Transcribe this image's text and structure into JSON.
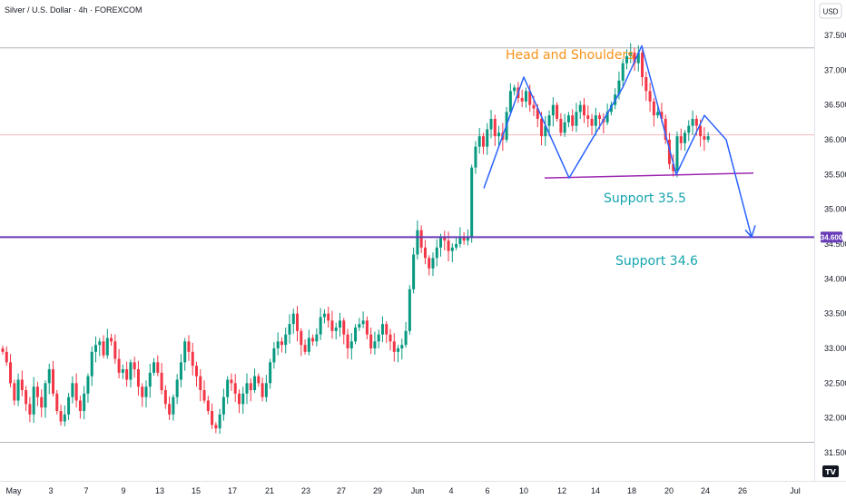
{
  "header": {
    "symbol_title": "Silver / U.S. Dollar · 4h · FOREXCOM",
    "currency_button": "USD"
  },
  "colors": {
    "up": "#089981",
    "down": "#f23645",
    "pattern": "#2962ff",
    "support_line": "#9c27b0",
    "level_line": "#673ab7",
    "annotation_orange": "#f7931a",
    "annotation_teal": "#16a5ae",
    "top_ref_line": "#b2b5be",
    "last_price_line": "#f7b7bd"
  },
  "chart_data": {
    "type": "candlestick",
    "title": "Silver / U.S. Dollar · 4h · FOREXCOM",
    "x_axis": {
      "tick_labels": [
        "May",
        "3",
        "7",
        "9",
        "13",
        "15",
        "17",
        "21",
        "23",
        "27",
        "29",
        "Jun",
        "4",
        "6",
        "10",
        "12",
        "14",
        "18",
        "20",
        "24",
        "26",
        "Jul"
      ]
    },
    "y_axis": {
      "range": [
        31.4,
        37.9
      ],
      "tick_labels": [
        "37.500",
        "37.000",
        "36.500",
        "36.000",
        "35.500",
        "35.000",
        "34.500",
        "34.000",
        "33.500",
        "33.000",
        "32.500",
        "32.000",
        "31.500"
      ],
      "tick_values": [
        37.5,
        37.0,
        36.5,
        36.0,
        35.5,
        35.0,
        34.5,
        34.0,
        33.5,
        33.0,
        32.5,
        32.0,
        31.5
      ],
      "price_label": "34.600",
      "price_label_value": 34.6
    },
    "closes": [
      32.95,
      32.8,
      32.5,
      32.25,
      32.55,
      32.4,
      32.2,
      32.05,
      32.45,
      32.3,
      32.15,
      32.5,
      32.7,
      32.35,
      32.1,
      31.95,
      32.05,
      32.3,
      32.5,
      32.25,
      32.1,
      32.35,
      32.6,
      32.95,
      33.05,
      33.1,
      32.9,
      33.15,
      33.1,
      32.85,
      32.65,
      32.7,
      32.55,
      32.8,
      32.7,
      32.45,
      32.3,
      32.45,
      32.65,
      32.8,
      32.65,
      32.4,
      32.2,
      32.05,
      32.3,
      32.55,
      32.8,
      33.1,
      32.95,
      32.75,
      32.6,
      32.4,
      32.25,
      32.1,
      31.9,
      31.85,
      32.05,
      32.3,
      32.55,
      32.5,
      32.35,
      32.2,
      32.35,
      32.5,
      32.4,
      32.6,
      32.5,
      32.3,
      32.5,
      32.8,
      33.0,
      33.1,
      33.05,
      33.2,
      33.35,
      33.5,
      33.25,
      33.05,
      32.95,
      33.15,
      33.1,
      33.2,
      33.45,
      33.5,
      33.4,
      33.25,
      33.3,
      33.4,
      33.2,
      33.0,
      33.1,
      33.3,
      33.35,
      33.4,
      33.2,
      33.0,
      33.1,
      33.2,
      33.35,
      33.2,
      33.1,
      32.95,
      33.0,
      33.05,
      33.25,
      33.85,
      34.35,
      34.7,
      34.45,
      34.3,
      34.15,
      34.3,
      34.45,
      34.6,
      34.55,
      34.4,
      34.45,
      34.5,
      34.6,
      34.55,
      34.6,
      35.6,
      35.9,
      36.05,
      35.9,
      36.15,
      36.3,
      36.05,
      36.1,
      36.0,
      36.4,
      36.7,
      36.75,
      36.6,
      36.55,
      36.7,
      36.5,
      36.45,
      36.3,
      36.05,
      36.2,
      36.35,
      36.5,
      36.3,
      36.1,
      36.25,
      36.35,
      36.2,
      36.4,
      36.5,
      36.35,
      36.3,
      36.2,
      36.35,
      36.3,
      36.25,
      36.4,
      36.5,
      36.65,
      36.85,
      37.1,
      37.2,
      37.25,
      37.1,
      37.25,
      36.9,
      36.7,
      36.55,
      36.35,
      36.4,
      36.3,
      36.0,
      35.65,
      35.55,
      36.05,
      35.95,
      36.1,
      36.2,
      36.3,
      36.2,
      36.05,
      36.0,
      36.05
    ],
    "annotations": [
      {
        "text": "Head and Shoulders",
        "color": "#f7931a"
      },
      {
        "text": "Support 35.5",
        "color": "#16a5ae"
      },
      {
        "text": "Support 34.6",
        "color": "#16a5ae"
      }
    ],
    "pattern_points": [
      [
        35.3
      ],
      [
        36.9
      ],
      [
        35.45
      ],
      [
        36.75
      ],
      [
        37.35
      ],
      [
        35.5
      ],
      [
        36.35
      ],
      [
        36.0
      ],
      [
        34.6
      ]
    ],
    "support_line_values": [
      35.45,
      35.52
    ],
    "levels": {
      "top_reference": 37.32,
      "last_price": 36.07,
      "support_level": 34.6,
      "bottom_reference": 31.65
    },
    "grid": false
  }
}
